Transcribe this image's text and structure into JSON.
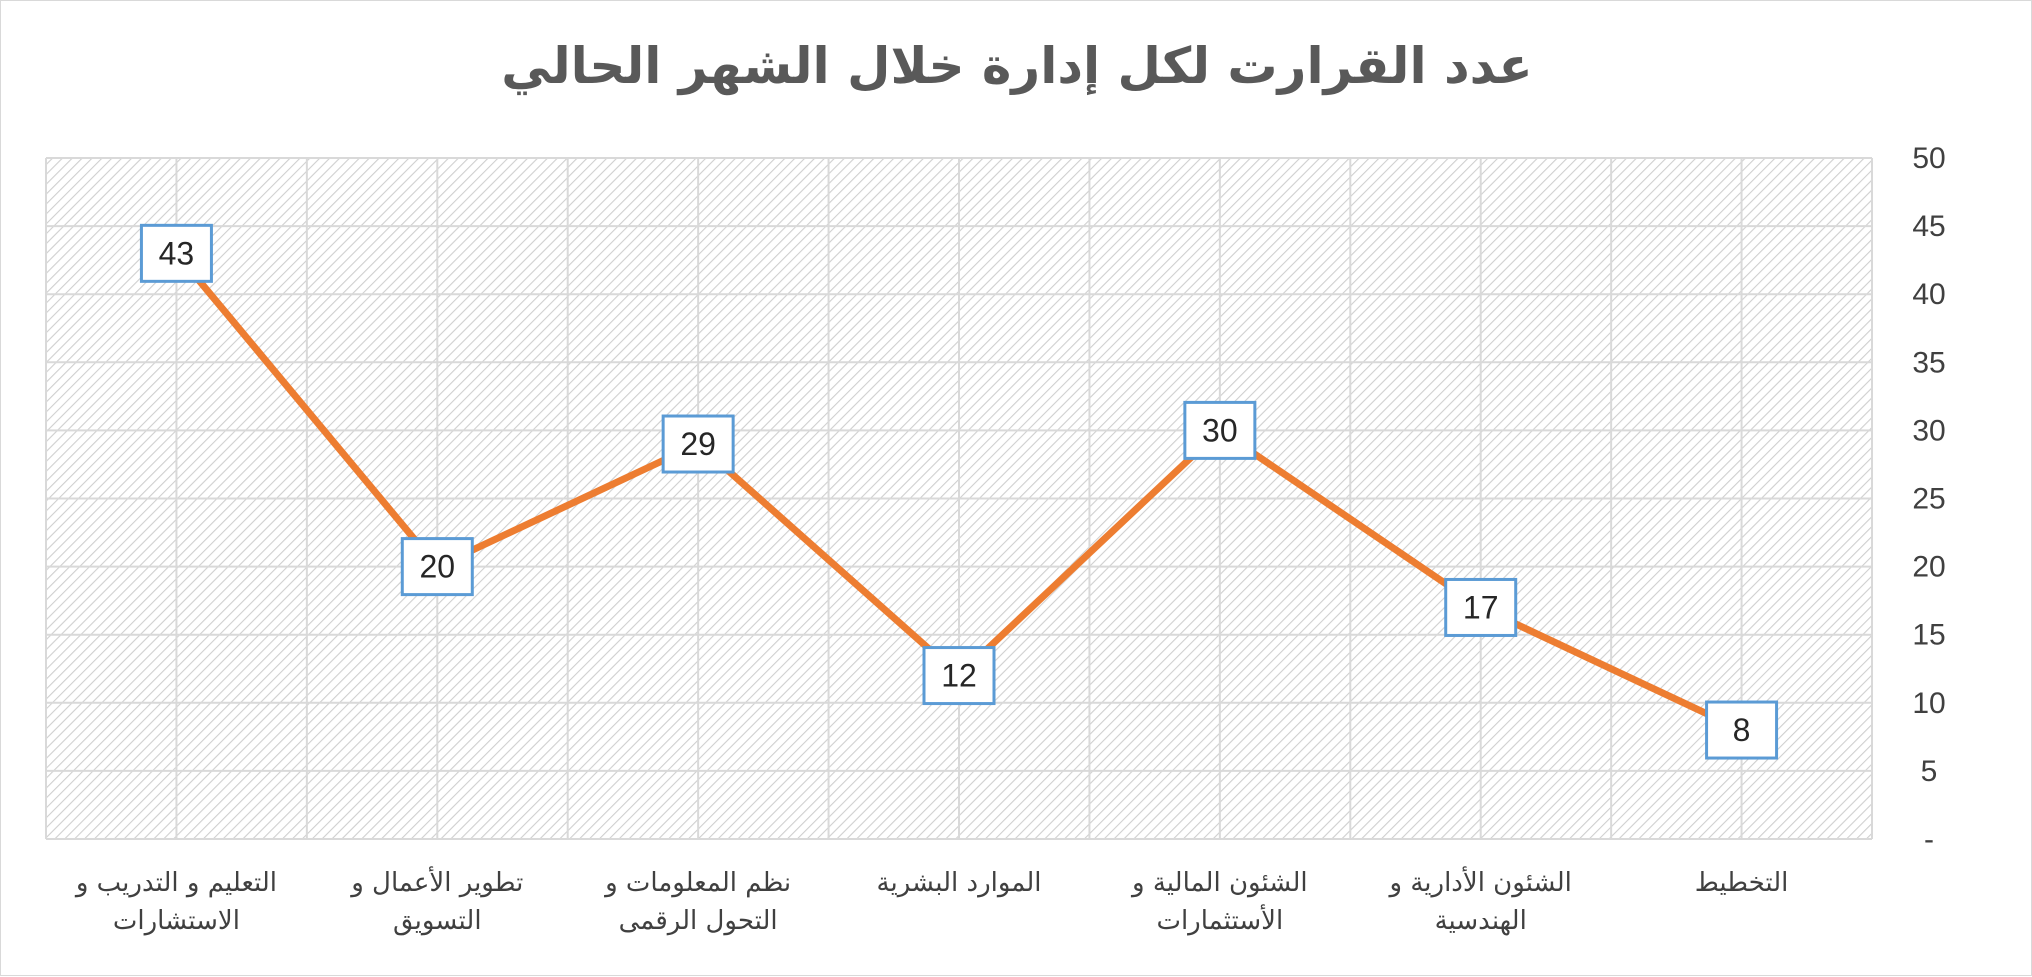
{
  "chart_data": {
    "type": "line",
    "title": "عدد القرارت لكل إدارة خلال الشهر الحالي",
    "categories": [
      "التخطيط",
      "الشئون الأدارية و الهندسية",
      "الشئون المالية و الأستثمارات",
      "الموارد البشرية",
      "نظم المعلومات و التحول الرقمى",
      "تطوير الأعمال و التسويق",
      "التعليم و التدريب و الاستشارات"
    ],
    "category_lines": [
      [
        "التخطيط"
      ],
      [
        "الشئون الأدارية و",
        "الهندسية"
      ],
      [
        "الشئون المالية و",
        "الأستثمارات"
      ],
      [
        "الموارد البشرية"
      ],
      [
        "نظم المعلومات و",
        "التحول الرقمى"
      ],
      [
        "تطوير الأعمال و",
        "التسويق"
      ],
      [
        "التعليم و التدريب و",
        "الاستشارات"
      ]
    ],
    "series": [
      {
        "values": [
          8,
          17,
          30,
          12,
          29,
          20,
          43
        ]
      }
    ],
    "ylim": [
      0,
      50
    ],
    "yticks": [
      0,
      5,
      10,
      15,
      20,
      25,
      30,
      35,
      40,
      45,
      50
    ],
    "ytick_labels": [
      "-",
      "5",
      "10",
      "15",
      "20",
      "25",
      "30",
      "35",
      "40",
      "45",
      "50"
    ],
    "y_axis_side": "right",
    "x_reversed": true,
    "grid": true,
    "legend": "none",
    "data_labels": true,
    "colors": {
      "line": "#ED7D31",
      "label_border": "#5B9BD5",
      "grid": "#d9d9d9",
      "hatch": "#c8c8c8",
      "text": "#404040"
    }
  }
}
